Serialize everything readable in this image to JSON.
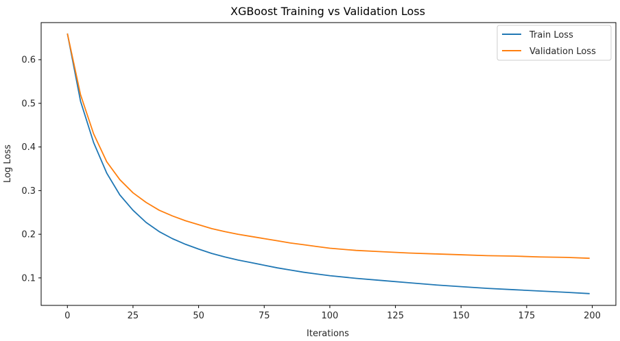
{
  "chart_data": {
    "type": "line",
    "title": "XGBoost Training vs Validation Loss",
    "xlabel": "Iterations",
    "ylabel": "Log Loss",
    "xlim": [
      -10,
      209
    ],
    "ylim": [
      0.037,
      0.685
    ],
    "xticks": [
      0,
      25,
      50,
      75,
      100,
      125,
      150,
      175,
      200
    ],
    "yticks": [
      0.1,
      0.2,
      0.3,
      0.4,
      0.5,
      0.6
    ],
    "ytick_labels": [
      "0.1",
      "0.2",
      "0.3",
      "0.4",
      "0.5",
      "0.6"
    ],
    "grid": false,
    "legend_position": "top-right",
    "x": [
      0,
      5,
      10,
      15,
      20,
      25,
      30,
      35,
      40,
      45,
      50,
      55,
      60,
      65,
      70,
      75,
      80,
      85,
      90,
      95,
      100,
      110,
      120,
      130,
      140,
      150,
      160,
      170,
      180,
      190,
      199
    ],
    "series": [
      {
        "name": "Train Loss",
        "color": "#1f77b4",
        "values": [
          0.66,
          0.505,
          0.41,
          0.34,
          0.29,
          0.255,
          0.227,
          0.206,
          0.19,
          0.177,
          0.166,
          0.156,
          0.148,
          0.141,
          0.135,
          0.129,
          0.123,
          0.118,
          0.113,
          0.109,
          0.105,
          0.099,
          0.094,
          0.089,
          0.084,
          0.08,
          0.076,
          0.073,
          0.07,
          0.067,
          0.064
        ]
      },
      {
        "name": "Validation Loss",
        "color": "#ff7f0e",
        "values": [
          0.66,
          0.52,
          0.43,
          0.366,
          0.325,
          0.295,
          0.273,
          0.255,
          0.242,
          0.231,
          0.222,
          0.213,
          0.206,
          0.2,
          0.195,
          0.19,
          0.185,
          0.18,
          0.176,
          0.172,
          0.168,
          0.163,
          0.16,
          0.157,
          0.155,
          0.153,
          0.151,
          0.15,
          0.148,
          0.147,
          0.145
        ]
      }
    ]
  }
}
